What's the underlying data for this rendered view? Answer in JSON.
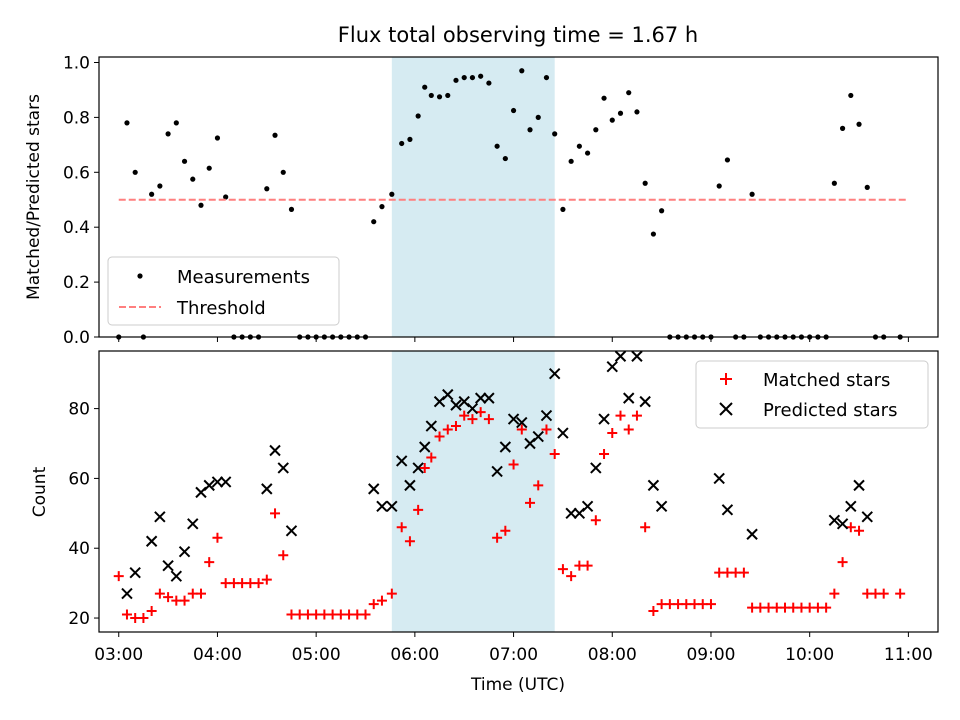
{
  "chart_data": [
    {
      "type": "scatter",
      "title": "Flux total observing time = 1.67 h",
      "xlabel": "",
      "ylabel": "Matched/Predicted stars",
      "x_unit": "hours UTC",
      "xlim": [
        "02:48",
        "11:18"
      ],
      "ylim": [
        0.0,
        1.02
      ],
      "yticks": [
        "0.0",
        "0.2",
        "0.4",
        "0.6",
        "0.8",
        "1.0"
      ],
      "shaded_interval": [
        "05:46",
        "07:25"
      ],
      "legend_location": "lower-left",
      "series": [
        {
          "name": "Measurements",
          "style": "dot",
          "color": "#000000",
          "points": [
            [
              "03:00",
              0.0
            ],
            [
              "03:05",
              0.78
            ],
            [
              "03:10",
              0.6
            ],
            [
              "03:15",
              0.0
            ],
            [
              "03:20",
              0.52
            ],
            [
              "03:25",
              0.55
            ],
            [
              "03:30",
              0.74
            ],
            [
              "03:35",
              0.78
            ],
            [
              "03:40",
              0.64
            ],
            [
              "03:45",
              0.575
            ],
            [
              "03:50",
              0.48
            ],
            [
              "03:55",
              0.615
            ],
            [
              "04:00",
              0.725
            ],
            [
              "04:05",
              0.51
            ],
            [
              "04:10",
              0.0
            ],
            [
              "04:15",
              0.0
            ],
            [
              "04:20",
              0.0
            ],
            [
              "04:25",
              0.0
            ],
            [
              "04:30",
              0.54
            ],
            [
              "04:35",
              0.735
            ],
            [
              "04:40",
              0.6
            ],
            [
              "04:45",
              0.465
            ],
            [
              "04:50",
              0.0
            ],
            [
              "04:55",
              0.0
            ],
            [
              "05:00",
              0.0
            ],
            [
              "05:05",
              0.0
            ],
            [
              "05:10",
              0.0
            ],
            [
              "05:15",
              0.0
            ],
            [
              "05:20",
              0.0
            ],
            [
              "05:25",
              0.0
            ],
            [
              "05:30",
              0.0
            ],
            [
              "05:35",
              0.42
            ],
            [
              "05:40",
              0.475
            ],
            [
              "05:46",
              0.52
            ],
            [
              "05:52",
              0.705
            ],
            [
              "05:57",
              0.72
            ],
            [
              "06:02",
              0.805
            ],
            [
              "06:06",
              0.91
            ],
            [
              "06:10",
              0.88
            ],
            [
              "06:15",
              0.875
            ],
            [
              "06:20",
              0.88
            ],
            [
              "06:25",
              0.935
            ],
            [
              "06:30",
              0.945
            ],
            [
              "06:35",
              0.945
            ],
            [
              "06:40",
              0.95
            ],
            [
              "06:45",
              0.925
            ],
            [
              "06:50",
              0.695
            ],
            [
              "06:55",
              0.65
            ],
            [
              "07:00",
              0.825
            ],
            [
              "07:05",
              0.97
            ],
            [
              "07:10",
              0.755
            ],
            [
              "07:15",
              0.8
            ],
            [
              "07:20",
              0.945
            ],
            [
              "07:25",
              0.74
            ],
            [
              "07:30",
              0.465
            ],
            [
              "07:35",
              0.64
            ],
            [
              "07:40",
              0.695
            ],
            [
              "07:45",
              0.67
            ],
            [
              "07:50",
              0.755
            ],
            [
              "07:55",
              0.87
            ],
            [
              "08:00",
              0.79
            ],
            [
              "08:05",
              0.815
            ],
            [
              "08:10",
              0.89
            ],
            [
              "08:15",
              0.82
            ],
            [
              "08:20",
              0.56
            ],
            [
              "08:25",
              0.375
            ],
            [
              "08:30",
              0.46
            ],
            [
              "08:35",
              0.0
            ],
            [
              "08:40",
              0.0
            ],
            [
              "08:45",
              0.0
            ],
            [
              "08:50",
              0.0
            ],
            [
              "08:55",
              0.0
            ],
            [
              "09:00",
              0.0
            ],
            [
              "09:05",
              0.55
            ],
            [
              "09:10",
              0.645
            ],
            [
              "09:15",
              0.0
            ],
            [
              "09:20",
              0.0
            ],
            [
              "09:25",
              0.52
            ],
            [
              "09:30",
              0.0
            ],
            [
              "09:35",
              0.0
            ],
            [
              "09:40",
              0.0
            ],
            [
              "09:45",
              0.0
            ],
            [
              "09:50",
              0.0
            ],
            [
              "09:55",
              0.0
            ],
            [
              "10:00",
              0.0
            ],
            [
              "10:05",
              0.0
            ],
            [
              "10:10",
              0.0
            ],
            [
              "10:15",
              0.56
            ],
            [
              "10:20",
              0.76
            ],
            [
              "10:25",
              0.88
            ],
            [
              "10:30",
              0.775
            ],
            [
              "10:35",
              0.545
            ],
            [
              "10:40",
              0.0
            ],
            [
              "10:45",
              0.0
            ],
            [
              "10:55",
              0.0
            ]
          ]
        },
        {
          "name": "Threshold",
          "style": "dashed-line",
          "color": "#ff7f7f",
          "points": [
            [
              "03:00",
              0.5
            ],
            [
              "11:00",
              0.5
            ]
          ]
        }
      ]
    },
    {
      "type": "scatter",
      "title": "",
      "xlabel": "Time (UTC)",
      "ylabel": "Count",
      "x_unit": "hours UTC",
      "xlim": [
        "02:48",
        "11:18"
      ],
      "ylim": [
        16,
        96.5
      ],
      "yticks": [
        "20",
        "40",
        "60",
        "80"
      ],
      "xticks": [
        "03:00",
        "04:00",
        "05:00",
        "06:00",
        "07:00",
        "08:00",
        "09:00",
        "10:00",
        "11:00"
      ],
      "shaded_interval": [
        "05:46",
        "07:25"
      ],
      "legend_location": "upper-right",
      "series": [
        {
          "name": "Matched stars",
          "marker": "plus",
          "color": "#ff0000",
          "points": [
            [
              "03:00",
              32
            ],
            [
              "03:05",
              21
            ],
            [
              "03:10",
              20
            ],
            [
              "03:15",
              20
            ],
            [
              "03:20",
              22
            ],
            [
              "03:25",
              27
            ],
            [
              "03:30",
              26
            ],
            [
              "03:35",
              25
            ],
            [
              "03:40",
              25
            ],
            [
              "03:45",
              27
            ],
            [
              "03:50",
              27
            ],
            [
              "03:55",
              36
            ],
            [
              "04:00",
              43
            ],
            [
              "04:05",
              30
            ],
            [
              "04:10",
              30
            ],
            [
              "04:15",
              30
            ],
            [
              "04:20",
              30
            ],
            [
              "04:25",
              30
            ],
            [
              "04:30",
              31
            ],
            [
              "04:35",
              50
            ],
            [
              "04:40",
              38
            ],
            [
              "04:45",
              21
            ],
            [
              "04:50",
              21
            ],
            [
              "04:55",
              21
            ],
            [
              "05:00",
              21
            ],
            [
              "05:05",
              21
            ],
            [
              "05:10",
              21
            ],
            [
              "05:15",
              21
            ],
            [
              "05:20",
              21
            ],
            [
              "05:25",
              21
            ],
            [
              "05:30",
              21
            ],
            [
              "05:35",
              24
            ],
            [
              "05:40",
              25
            ],
            [
              "05:46",
              27
            ],
            [
              "05:52",
              46
            ],
            [
              "05:57",
              42
            ],
            [
              "06:02",
              51
            ],
            [
              "06:06",
              63
            ],
            [
              "06:10",
              66
            ],
            [
              "06:15",
              72
            ],
            [
              "06:20",
              74
            ],
            [
              "06:25",
              75
            ],
            [
              "06:30",
              78
            ],
            [
              "06:35",
              77
            ],
            [
              "06:40",
              79
            ],
            [
              "06:45",
              77
            ],
            [
              "06:50",
              43
            ],
            [
              "06:55",
              45
            ],
            [
              "07:00",
              64
            ],
            [
              "07:05",
              74
            ],
            [
              "07:10",
              53
            ],
            [
              "07:15",
              58
            ],
            [
              "07:20",
              74
            ],
            [
              "07:25",
              67
            ],
            [
              "07:30",
              34
            ],
            [
              "07:35",
              32
            ],
            [
              "07:40",
              35
            ],
            [
              "07:45",
              35
            ],
            [
              "07:50",
              48
            ],
            [
              "07:55",
              67
            ],
            [
              "08:00",
              73
            ],
            [
              "08:05",
              78
            ],
            [
              "08:10",
              74
            ],
            [
              "08:15",
              78
            ],
            [
              "08:20",
              46
            ],
            [
              "08:25",
              22
            ],
            [
              "08:30",
              24
            ],
            [
              "08:35",
              24
            ],
            [
              "08:40",
              24
            ],
            [
              "08:45",
              24
            ],
            [
              "08:50",
              24
            ],
            [
              "08:55",
              24
            ],
            [
              "09:00",
              24
            ],
            [
              "09:05",
              33
            ],
            [
              "09:10",
              33
            ],
            [
              "09:15",
              33
            ],
            [
              "09:20",
              33
            ],
            [
              "09:25",
              23
            ],
            [
              "09:30",
              23
            ],
            [
              "09:35",
              23
            ],
            [
              "09:40",
              23
            ],
            [
              "09:45",
              23
            ],
            [
              "09:50",
              23
            ],
            [
              "09:55",
              23
            ],
            [
              "10:00",
              23
            ],
            [
              "10:05",
              23
            ],
            [
              "10:10",
              23
            ],
            [
              "10:15",
              27
            ],
            [
              "10:20",
              36
            ],
            [
              "10:25",
              46
            ],
            [
              "10:30",
              45
            ],
            [
              "10:35",
              27
            ],
            [
              "10:40",
              27
            ],
            [
              "10:45",
              27
            ],
            [
              "10:55",
              27
            ]
          ]
        },
        {
          "name": "Predicted stars",
          "marker": "x",
          "color": "#000000",
          "points": [
            [
              "03:05",
              27
            ],
            [
              "03:10",
              33
            ],
            [
              "03:20",
              42
            ],
            [
              "03:25",
              49
            ],
            [
              "03:30",
              35
            ],
            [
              "03:35",
              32
            ],
            [
              "03:40",
              39
            ],
            [
              "03:45",
              47
            ],
            [
              "03:50",
              56
            ],
            [
              "03:55",
              58
            ],
            [
              "04:00",
              59
            ],
            [
              "04:05",
              59
            ],
            [
              "04:30",
              57
            ],
            [
              "04:35",
              68
            ],
            [
              "04:40",
              63
            ],
            [
              "04:45",
              45
            ],
            [
              "05:35",
              57
            ],
            [
              "05:40",
              52
            ],
            [
              "05:46",
              52
            ],
            [
              "05:52",
              65
            ],
            [
              "05:57",
              58
            ],
            [
              "06:02",
              63
            ],
            [
              "06:06",
              69
            ],
            [
              "06:10",
              75
            ],
            [
              "06:15",
              82
            ],
            [
              "06:20",
              84
            ],
            [
              "06:25",
              81
            ],
            [
              "06:30",
              82
            ],
            [
              "06:35",
              80
            ],
            [
              "06:40",
              83
            ],
            [
              "06:45",
              83
            ],
            [
              "06:50",
              62
            ],
            [
              "06:55",
              69
            ],
            [
              "07:00",
              77
            ],
            [
              "07:05",
              76
            ],
            [
              "07:10",
              70
            ],
            [
              "07:15",
              72
            ],
            [
              "07:20",
              78
            ],
            [
              "07:25",
              90
            ],
            [
              "07:30",
              73
            ],
            [
              "07:35",
              50
            ],
            [
              "07:40",
              50
            ],
            [
              "07:45",
              52
            ],
            [
              "07:50",
              63
            ],
            [
              "07:55",
              77
            ],
            [
              "08:00",
              92
            ],
            [
              "08:05",
              95
            ],
            [
              "08:10",
              83
            ],
            [
              "08:15",
              95
            ],
            [
              "08:20",
              82
            ],
            [
              "08:25",
              58
            ],
            [
              "08:30",
              52
            ],
            [
              "09:05",
              60
            ],
            [
              "09:10",
              51
            ],
            [
              "09:25",
              44
            ],
            [
              "10:15",
              48
            ],
            [
              "10:20",
              47
            ],
            [
              "10:25",
              52
            ],
            [
              "10:30",
              58
            ],
            [
              "10:35",
              49
            ]
          ]
        }
      ]
    }
  ]
}
